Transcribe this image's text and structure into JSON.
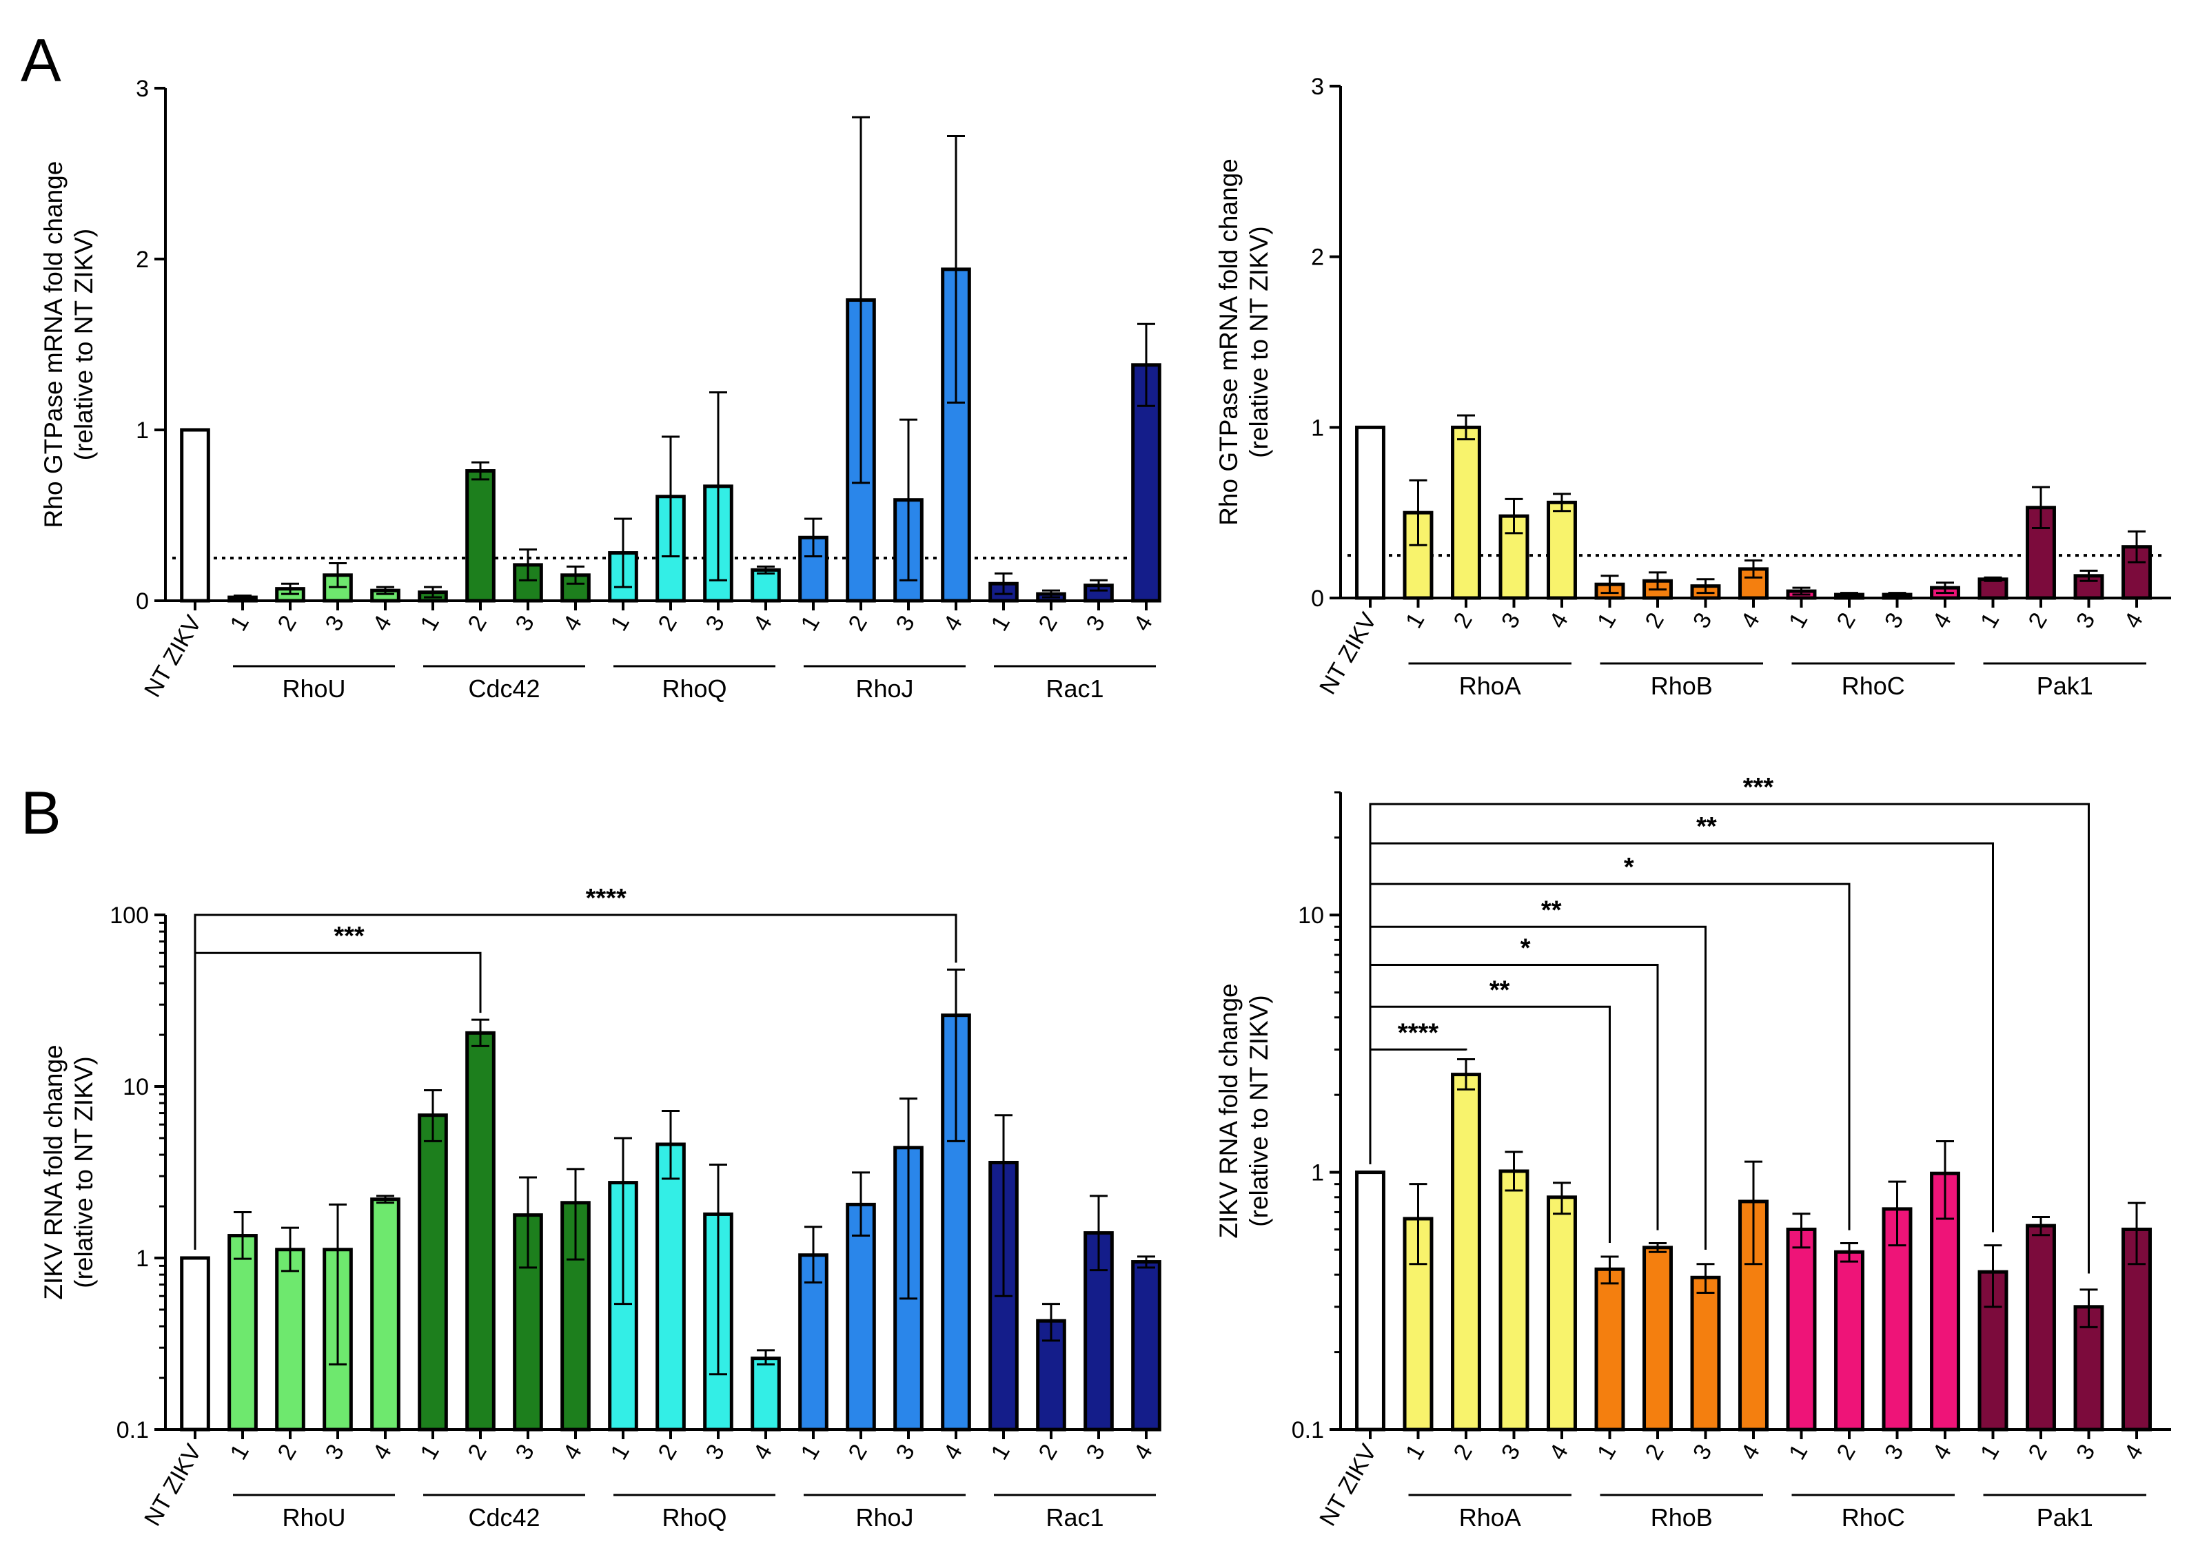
{
  "figure": {
    "panel_labels": [
      "A",
      "B"
    ]
  },
  "chart_data": [
    {
      "id": "A-left",
      "type": "bar",
      "scale": "linear",
      "ylabel": [
        "Rho GTPase mRNA fold change",
        "(relative to NT ZIKV)"
      ],
      "ylim": [
        0,
        3
      ],
      "yticks": [
        "0",
        "1",
        "2",
        "3"
      ],
      "yticks_values": [
        0,
        1,
        2,
        3
      ],
      "threshold": 0.25,
      "categories": [
        "NT ZIKV",
        "1",
        "2",
        "3",
        "4",
        "1",
        "2",
        "3",
        "4",
        "1",
        "2",
        "3",
        "4",
        "1",
        "2",
        "3",
        "4",
        "1",
        "2",
        "3",
        "4"
      ],
      "groups": [
        {
          "name": "RhoU",
          "start": 1,
          "end": 4
        },
        {
          "name": "Cdc42",
          "start": 5,
          "end": 8
        },
        {
          "name": "RhoQ",
          "start": 9,
          "end": 12
        },
        {
          "name": "RhoJ",
          "start": 13,
          "end": 16
        },
        {
          "name": "Rac1",
          "start": 17,
          "end": 20
        }
      ],
      "values": [
        1.0,
        0.02,
        0.07,
        0.15,
        0.06,
        0.05,
        0.76,
        0.21,
        0.15,
        0.28,
        0.61,
        0.67,
        0.18,
        0.37,
        1.76,
        0.59,
        1.94,
        0.1,
        0.04,
        0.09,
        1.38
      ],
      "err_high": [
        1.0,
        0.03,
        0.1,
        0.22,
        0.08,
        0.08,
        0.81,
        0.3,
        0.2,
        0.48,
        0.96,
        1.22,
        0.2,
        0.48,
        2.83,
        1.06,
        2.72,
        0.16,
        0.06,
        0.12,
        1.62
      ],
      "err_low": [
        1.0,
        0.01,
        0.04,
        0.08,
        0.04,
        0.02,
        0.71,
        0.12,
        0.1,
        0.08,
        0.26,
        0.12,
        0.16,
        0.26,
        0.69,
        0.12,
        1.16,
        0.04,
        0.02,
        0.06,
        1.14
      ],
      "colors": [
        "#ffffff",
        "#6ee86e",
        "#6ee86e",
        "#6ee86e",
        "#6ee86e",
        "#1d7f1d",
        "#1d7f1d",
        "#1d7f1d",
        "#1d7f1d",
        "#33eee6",
        "#33eee6",
        "#33eee6",
        "#33eee6",
        "#2a86ea",
        "#2a86ea",
        "#2a86ea",
        "#2a86ea",
        "#141d8a",
        "#141d8a",
        "#141d8a",
        "#141d8a"
      ],
      "significance": []
    },
    {
      "id": "A-right",
      "type": "bar",
      "scale": "linear",
      "ylabel": [
        "Rho GTPase mRNA fold change",
        "(relative to NT ZIKV)"
      ],
      "ylim": [
        0,
        3
      ],
      "yticks": [
        "0",
        "1",
        "2",
        "3"
      ],
      "yticks_values": [
        0,
        1,
        2,
        3
      ],
      "threshold": 0.25,
      "categories": [
        "NT ZIKV",
        "1",
        "2",
        "3",
        "4",
        "1",
        "2",
        "3",
        "4",
        "1",
        "2",
        "3",
        "4",
        "1",
        "2",
        "3",
        "4"
      ],
      "groups": [
        {
          "name": "RhoA",
          "start": 1,
          "end": 4
        },
        {
          "name": "RhoB",
          "start": 5,
          "end": 8
        },
        {
          "name": "RhoC",
          "start": 9,
          "end": 12
        },
        {
          "name": "Pak1",
          "start": 13,
          "end": 16
        }
      ],
      "values": [
        1.0,
        0.5,
        1.0,
        0.48,
        0.56,
        0.08,
        0.1,
        0.07,
        0.17,
        0.04,
        0.02,
        0.02,
        0.06,
        0.11,
        0.53,
        0.13,
        0.3
      ],
      "err_high": [
        1.0,
        0.69,
        1.07,
        0.58,
        0.61,
        0.13,
        0.15,
        0.11,
        0.22,
        0.06,
        0.03,
        0.03,
        0.09,
        0.12,
        0.65,
        0.16,
        0.39
      ],
      "err_low": [
        1.0,
        0.31,
        0.93,
        0.38,
        0.51,
        0.03,
        0.05,
        0.03,
        0.12,
        0.02,
        0.01,
        0.01,
        0.03,
        0.1,
        0.41,
        0.1,
        0.21
      ],
      "colors": [
        "#ffffff",
        "#f8f36c",
        "#f8f36c",
        "#f8f36c",
        "#f8f36c",
        "#f47f0f",
        "#f47f0f",
        "#f47f0f",
        "#f47f0f",
        "#ee1478",
        "#ee1478",
        "#ee1478",
        "#ee1478",
        "#7c0b3c",
        "#7c0b3c",
        "#7c0b3c",
        "#7c0b3c"
      ],
      "significance": []
    },
    {
      "id": "B-left",
      "type": "bar",
      "scale": "log",
      "ylabel": [
        "ZIKV RNA fold change",
        "(relative to NT ZIKV)"
      ],
      "ylim": [
        0.1,
        100
      ],
      "yticks": [
        "0.1",
        "1",
        "10",
        "100"
      ],
      "yticks_values": [
        0.1,
        1,
        10,
        100
      ],
      "threshold": null,
      "categories": [
        "NT ZIKV",
        "1",
        "2",
        "3",
        "4",
        "1",
        "2",
        "3",
        "4",
        "1",
        "2",
        "3",
        "4",
        "1",
        "2",
        "3",
        "4",
        "1",
        "2",
        "3",
        "4"
      ],
      "groups": [
        {
          "name": "RhoU",
          "start": 1,
          "end": 4
        },
        {
          "name": "Cdc42",
          "start": 5,
          "end": 8
        },
        {
          "name": "RhoQ",
          "start": 9,
          "end": 12
        },
        {
          "name": "RhoJ",
          "start": 13,
          "end": 16
        },
        {
          "name": "Rac1",
          "start": 17,
          "end": 20
        }
      ],
      "values": [
        1.0,
        1.35,
        1.12,
        1.12,
        2.2,
        6.8,
        20.5,
        1.78,
        2.1,
        2.75,
        4.6,
        1.8,
        0.26,
        1.04,
        2.05,
        4.4,
        26.0,
        3.6,
        0.43,
        1.4,
        0.95
      ],
      "err_high": [
        1.0,
        1.85,
        1.5,
        2.05,
        2.3,
        9.5,
        24.5,
        2.95,
        3.3,
        5.0,
        7.2,
        3.5,
        0.29,
        1.52,
        3.15,
        8.5,
        48.0,
        6.8,
        0.54,
        2.3,
        1.02
      ],
      "err_low": [
        1.0,
        0.99,
        0.84,
        0.24,
        2.1,
        4.8,
        17.2,
        0.88,
        0.98,
        0.54,
        2.9,
        0.21,
        0.24,
        0.72,
        1.35,
        0.58,
        4.8,
        0.6,
        0.33,
        0.85,
        0.88
      ],
      "colors": [
        "#ffffff",
        "#6ee86e",
        "#6ee86e",
        "#6ee86e",
        "#6ee86e",
        "#1d7f1d",
        "#1d7f1d",
        "#1d7f1d",
        "#1d7f1d",
        "#33eee6",
        "#33eee6",
        "#33eee6",
        "#33eee6",
        "#2a86ea",
        "#2a86ea",
        "#2a86ea",
        "#2a86ea",
        "#141d8a",
        "#141d8a",
        "#141d8a",
        "#141d8a"
      ],
      "significance": [
        {
          "from": 0,
          "to": 6,
          "label": "***",
          "line_y": 60,
          "end_y": 24.5
        },
        {
          "from": 0,
          "to": 16,
          "label": "****",
          "line_y": 100,
          "end_y": 48
        }
      ]
    },
    {
      "id": "B-right",
      "type": "bar",
      "scale": "log",
      "ylabel": [
        "ZIKV RNA fold change",
        "(relative to NT ZIKV)"
      ],
      "ylim": [
        0.1,
        30
      ],
      "yticks": [
        "0.1",
        "1",
        "10"
      ],
      "yticks_values": [
        0.1,
        1,
        10
      ],
      "threshold": null,
      "categories": [
        "NT ZIKV",
        "1",
        "2",
        "3",
        "4",
        "1",
        "2",
        "3",
        "4",
        "1",
        "2",
        "3",
        "4",
        "1",
        "2",
        "3",
        "4"
      ],
      "groups": [
        {
          "name": "RhoA",
          "start": 1,
          "end": 4
        },
        {
          "name": "RhoB",
          "start": 5,
          "end": 8
        },
        {
          "name": "RhoC",
          "start": 9,
          "end": 12
        },
        {
          "name": "Pak1",
          "start": 13,
          "end": 16
        }
      ],
      "values": [
        1.0,
        0.66,
        2.4,
        1.01,
        0.8,
        0.42,
        0.51,
        0.39,
        0.77,
        0.6,
        0.49,
        0.72,
        0.99,
        0.41,
        0.62,
        0.3,
        0.6
      ],
      "err_high": [
        1.0,
        0.9,
        2.75,
        1.2,
        0.91,
        0.47,
        0.53,
        0.44,
        1.1,
        0.69,
        0.53,
        0.92,
        1.32,
        0.52,
        0.67,
        0.35,
        0.76
      ],
      "err_low": [
        1.0,
        0.44,
        2.1,
        0.85,
        0.69,
        0.37,
        0.49,
        0.34,
        0.44,
        0.51,
        0.45,
        0.52,
        0.66,
        0.3,
        0.57,
        0.25,
        0.44
      ],
      "colors": [
        "#ffffff",
        "#f8f36c",
        "#f8f36c",
        "#f8f36c",
        "#f8f36c",
        "#f47f0f",
        "#f47f0f",
        "#f47f0f",
        "#f47f0f",
        "#ee1478",
        "#ee1478",
        "#ee1478",
        "#ee1478",
        "#7c0b3c",
        "#7c0b3c",
        "#7c0b3c",
        "#7c0b3c"
      ],
      "significance": [
        {
          "from": 0,
          "to": 2,
          "label": "****",
          "line_y": 3.0,
          "end_y": 2.8
        },
        {
          "from": 0,
          "to": 5,
          "label": "**",
          "line_y": 4.4,
          "end_y": 0.5
        },
        {
          "from": 0,
          "to": 6,
          "label": "*",
          "line_y": 6.4,
          "end_y": 0.56
        },
        {
          "from": 0,
          "to": 7,
          "label": "**",
          "line_y": 9.0,
          "end_y": 0.47
        },
        {
          "from": 0,
          "to": 10,
          "label": "*",
          "line_y": 13.2,
          "end_y": 0.56
        },
        {
          "from": 0,
          "to": 13,
          "label": "**",
          "line_y": 19.0,
          "end_y": 0.55
        },
        {
          "from": 0,
          "to": 15,
          "label": "***",
          "line_y": 27.0,
          "end_y": 0.38
        }
      ]
    }
  ]
}
